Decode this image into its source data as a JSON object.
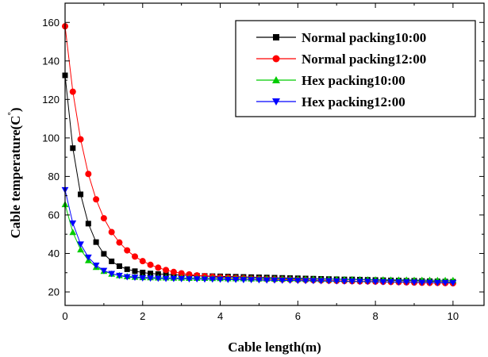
{
  "chart_data": {
    "type": "line",
    "title": "",
    "xlabel": "Cable length(m)",
    "ylabel_main": "Cable temperature(C",
    "ylabel_degree": "°",
    "ylabel_close": ")",
    "xlim": [
      0,
      10.8
    ],
    "ylim": [
      13,
      170
    ],
    "xticks": [
      0,
      2,
      4,
      6,
      8,
      10
    ],
    "yticks": [
      20,
      40,
      60,
      80,
      100,
      120,
      140,
      160
    ],
    "legend_position": "top-right",
    "grid": false,
    "x": [
      0,
      0.2,
      0.4,
      0.6,
      0.8,
      1.0,
      1.2,
      1.4,
      1.6,
      1.8,
      2.0,
      2.2,
      2.4,
      2.6,
      2.8,
      3.0,
      3.2,
      3.4,
      3.6,
      3.8,
      4.0,
      4.2,
      4.4,
      4.6,
      4.8,
      5.0,
      5.2,
      5.4,
      5.6,
      5.8,
      6.0,
      6.2,
      6.4,
      6.6,
      6.8,
      7.0,
      7.2,
      7.4,
      7.6,
      7.8,
      8.0,
      8.2,
      8.4,
      8.6,
      8.8,
      9.0,
      9.2,
      9.4,
      9.6,
      9.8,
      10.0
    ],
    "series": [
      {
        "name": "Normal packing10:00",
        "color": "#000000",
        "marker": "square",
        "values": [
          132.5,
          94.7,
          70.7,
          55.5,
          45.9,
          39.8,
          35.9,
          33.4,
          31.8,
          30.8,
          30.1,
          29.6,
          29.3,
          29.1,
          28.9,
          28.7,
          28.6,
          28.4,
          28.3,
          28.2,
          28.1,
          28.0,
          27.9,
          27.8,
          27.7,
          27.6,
          27.5,
          27.4,
          27.3,
          27.2,
          27.1,
          27.0,
          26.9,
          26.8,
          26.7,
          26.6,
          26.5,
          26.5,
          26.4,
          26.3,
          26.2,
          26.1,
          26.0,
          25.9,
          25.8,
          25.8,
          25.7,
          25.6,
          25.5,
          25.4,
          25.3
        ]
      },
      {
        "name": "Normal packing12:00",
        "color": "#ff0000",
        "marker": "circle",
        "values": [
          158.0,
          124.0,
          99.3,
          81.3,
          68.1,
          58.3,
          51.1,
          45.7,
          41.6,
          38.4,
          36.0,
          34.1,
          32.6,
          31.4,
          30.4,
          29.7,
          29.1,
          28.6,
          28.2,
          27.9,
          27.6,
          27.4,
          27.2,
          27.1,
          26.9,
          26.8,
          26.7,
          26.6,
          26.5,
          26.4,
          26.3,
          26.2,
          26.1,
          26.0,
          25.9,
          25.8,
          25.7,
          25.6,
          25.5,
          25.5,
          25.4,
          25.3,
          25.2,
          25.1,
          25.0,
          24.9,
          24.8,
          24.7,
          24.7,
          24.6,
          24.5
        ]
      },
      {
        "name": "Hex packing10:00",
        "color": "#00cc00",
        "marker": "triangle-up",
        "values": [
          65.5,
          51.0,
          42.0,
          36.4,
          32.9,
          30.8,
          29.4,
          28.6,
          28.1,
          27.8,
          27.6,
          27.5,
          27.4,
          27.4,
          27.3,
          27.3,
          27.2,
          27.2,
          27.2,
          27.1,
          27.1,
          27.0,
          27.0,
          27.0,
          26.9,
          26.9,
          26.9,
          26.8,
          26.8,
          26.8,
          26.7,
          26.7,
          26.7,
          26.6,
          26.6,
          26.6,
          26.5,
          26.5,
          26.5,
          26.4,
          26.4,
          26.4,
          26.3,
          26.3,
          26.3,
          26.2,
          26.2,
          26.2,
          26.1,
          26.1,
          26.1
        ]
      },
      {
        "name": "Hex packing12:00",
        "color": "#0000ff",
        "marker": "triangle-down",
        "values": [
          73.0,
          55.7,
          44.8,
          38.0,
          33.8,
          31.1,
          29.5,
          28.5,
          27.8,
          27.5,
          27.2,
          27.1,
          27.0,
          26.9,
          26.9,
          26.8,
          26.7,
          26.7,
          26.6,
          26.6,
          26.5,
          26.4,
          26.4,
          26.3,
          26.3,
          26.2,
          26.1,
          26.1,
          26.0,
          26.0,
          25.9,
          25.8,
          25.8,
          25.7,
          25.7,
          25.6,
          25.5,
          25.5,
          25.4,
          25.4,
          25.3,
          25.2,
          25.2,
          25.1,
          25.1,
          25.0,
          24.9,
          24.9,
          24.8,
          24.8,
          24.7
        ]
      }
    ]
  }
}
